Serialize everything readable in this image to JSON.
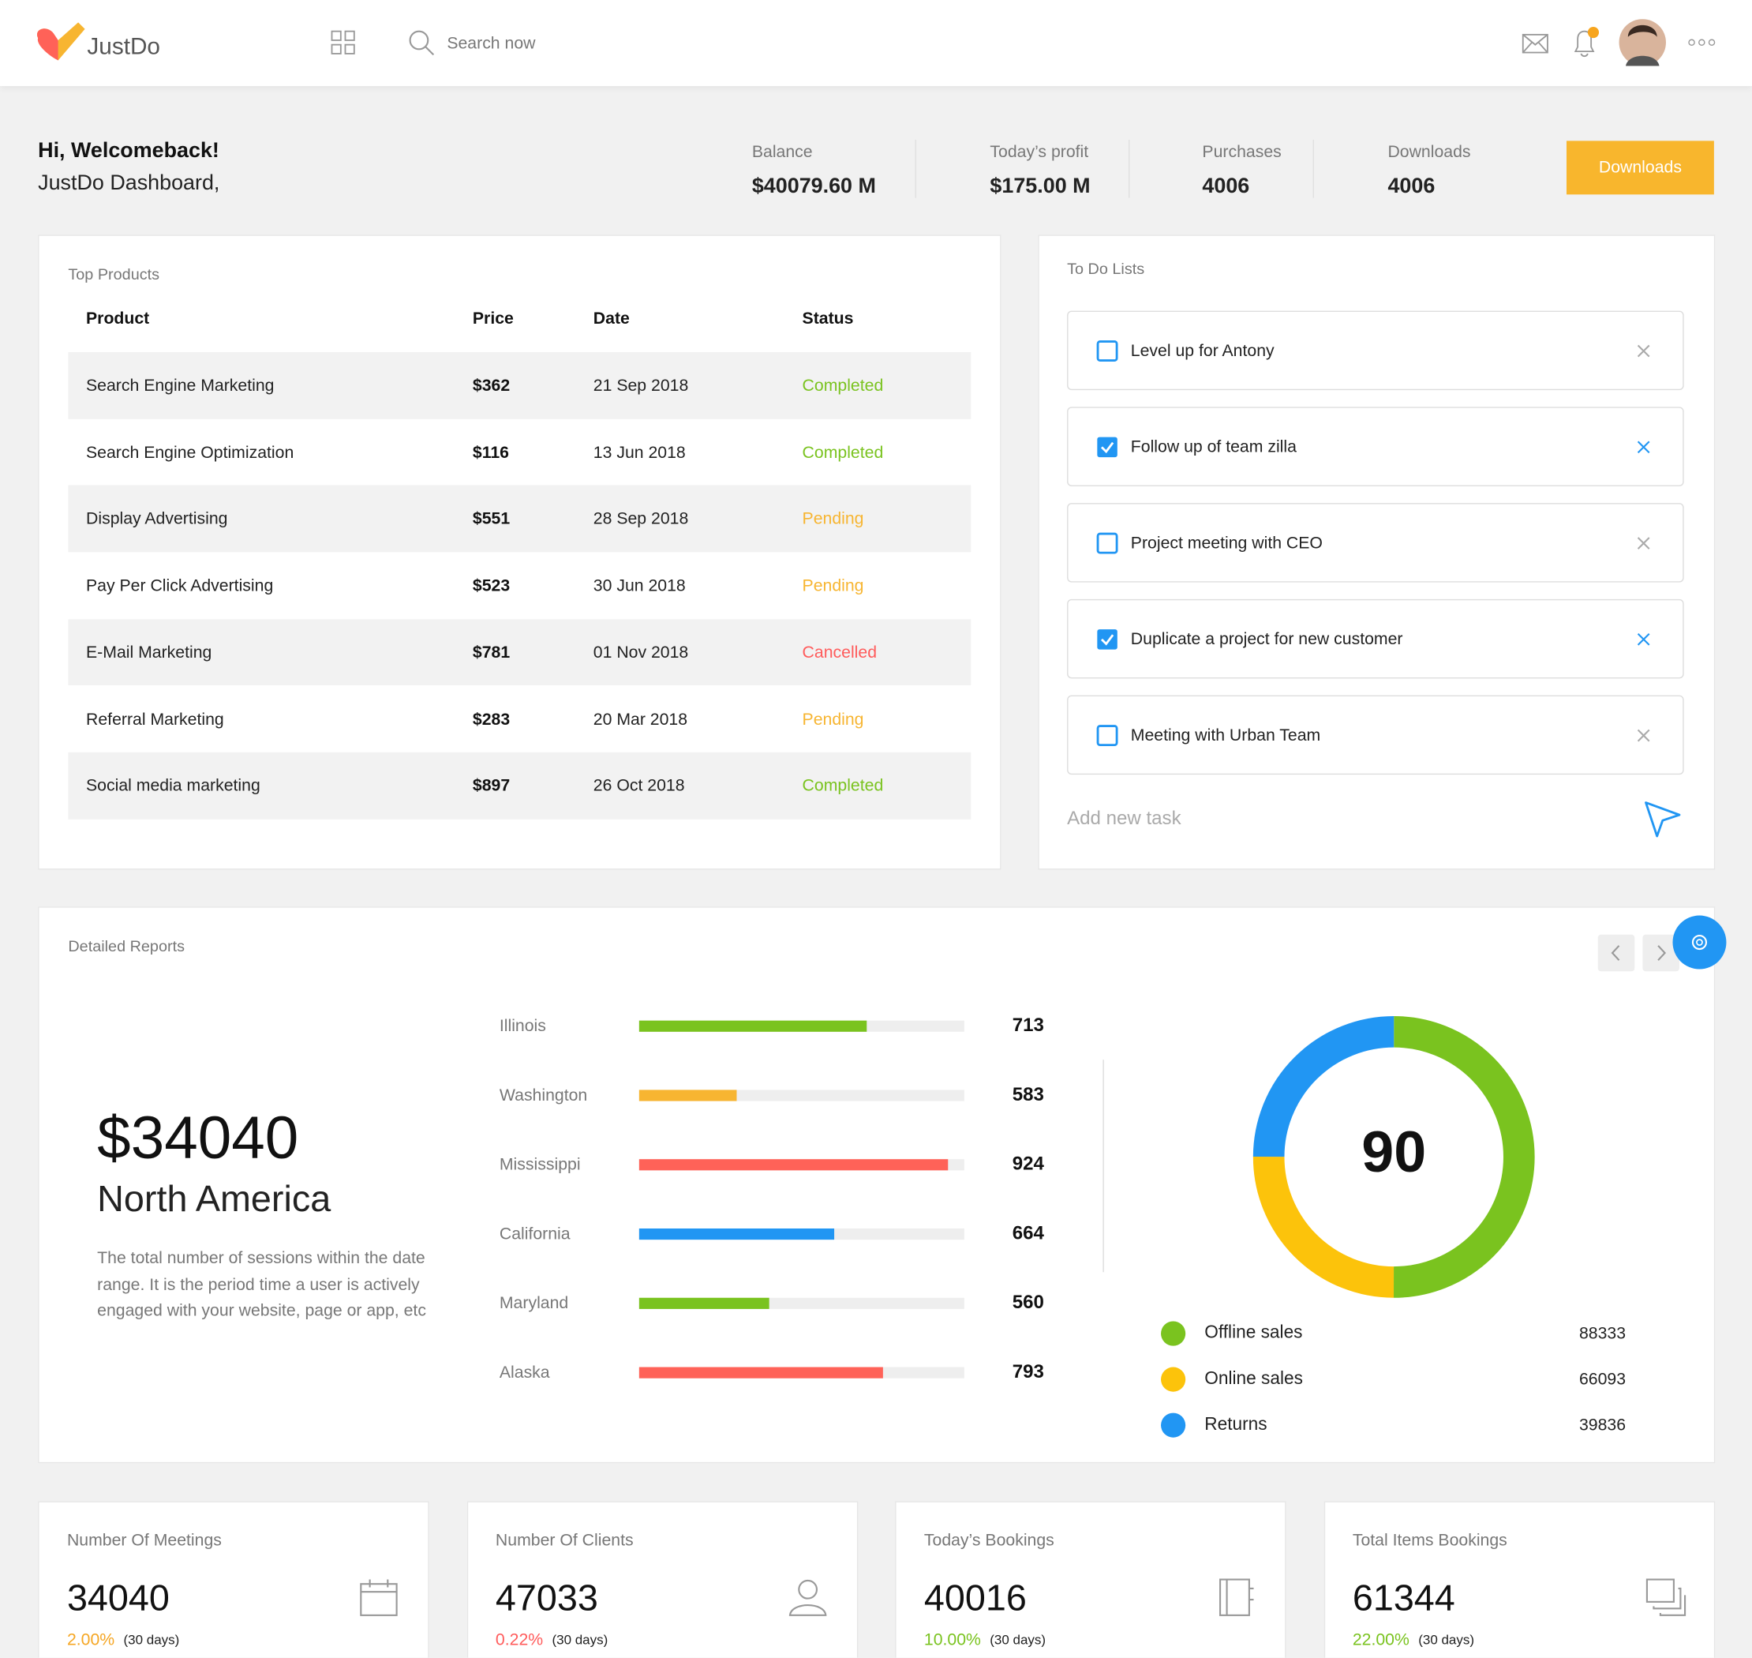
{
  "header": {
    "logo": "JustDo",
    "search_placeholder": "Search now"
  },
  "welcome": {
    "greeting": "Hi, Welcomeback!",
    "subtitle": "JustDo Dashboard,"
  },
  "stats": [
    {
      "label": "Balance",
      "value": "$40079.60 M"
    },
    {
      "label": "Today’s profit",
      "value": "$175.00 M"
    },
    {
      "label": "Purchases",
      "value": "4006"
    },
    {
      "label": "Downloads",
      "value": "4006"
    }
  ],
  "download_button": "Downloads",
  "top_products": {
    "title": "Top Products",
    "columns": [
      "Product",
      "Price",
      "Date",
      "Status"
    ],
    "rows": [
      {
        "product": "Search Engine Marketing",
        "price": "$362",
        "date": "21 Sep 2018",
        "status": "Completed",
        "status_color": "#7ac31f"
      },
      {
        "product": "Search Engine Optimization",
        "price": "$116",
        "date": "13 Jun 2018",
        "status": "Completed",
        "status_color": "#7ac31f"
      },
      {
        "product": "Display Advertising",
        "price": "$551",
        "date": "28 Sep 2018",
        "status": "Pending",
        "status_color": "#f7b531"
      },
      {
        "product": "Pay Per Click Advertising",
        "price": "$523",
        "date": "30 Jun 2018",
        "status": "Pending",
        "status_color": "#f7b531"
      },
      {
        "product": "E-Mail Marketing",
        "price": "$781",
        "date": "01 Nov 2018",
        "status": "Cancelled",
        "status_color": "#ff5b5b"
      },
      {
        "product": "Referral Marketing",
        "price": "$283",
        "date": "20 Mar 2018",
        "status": "Pending",
        "status_color": "#f7b531"
      },
      {
        "product": "Social media marketing",
        "price": "$897",
        "date": "26 Oct 2018",
        "status": "Completed",
        "status_color": "#7ac31f"
      }
    ]
  },
  "todo": {
    "title": "To Do Lists",
    "items": [
      {
        "text": "Level up for Antony",
        "done": false
      },
      {
        "text": "Follow up of team zilla",
        "done": true
      },
      {
        "text": "Project meeting with CEO",
        "done": false
      },
      {
        "text": "Duplicate a project for new customer",
        "done": true
      },
      {
        "text": "Meeting with Urban Team",
        "done": false
      }
    ],
    "add_placeholder": "Add new task"
  },
  "reports": {
    "title": "Detailed Reports",
    "amount": "$34040",
    "region": "North America",
    "description": "The total number of sessions within the date range. It is the period time a user is actively engaged with your website, page or app, etc",
    "bars": [
      {
        "label": "Illinois",
        "value": 713,
        "fill": 70,
        "color": "#7ac31f"
      },
      {
        "label": "Washington",
        "value": 583,
        "fill": 30,
        "color": "#f7b531"
      },
      {
        "label": "Mississippi",
        "value": 924,
        "fill": 95,
        "color": "#ff6258"
      },
      {
        "label": "California",
        "value": 664,
        "fill": 60,
        "color": "#2196f3"
      },
      {
        "label": "Maryland",
        "value": 560,
        "fill": 40,
        "color": "#7ac31f"
      },
      {
        "label": "Alaska",
        "value": 793,
        "fill": 75,
        "color": "#ff6258"
      }
    ],
    "donut": {
      "center": 90,
      "segments": [
        {
          "name": "Offline sales",
          "value": 88333,
          "share": 50,
          "color": "#7ac31f"
        },
        {
          "name": "Online sales",
          "value": 66093,
          "share": 25,
          "color": "#fcc30b"
        },
        {
          "name": "Returns",
          "value": 39836,
          "share": 25,
          "color": "#2196f3"
        }
      ]
    }
  },
  "cards": [
    {
      "title": "Number Of Meetings",
      "value": 34040,
      "change": "2.00%",
      "change_color": "#f5a623",
      "period": "(30 days)"
    },
    {
      "title": "Number Of Clients",
      "value": 47033,
      "change": "0.22%",
      "change_color": "#ff5b5b",
      "period": "(30 days)"
    },
    {
      "title": "Today’s Bookings",
      "value": 40016,
      "change": "10.00%",
      "change_color": "#7ac31f",
      "period": "(30 days)"
    },
    {
      "title": "Total Items Bookings",
      "value": 61344,
      "change": "22.00%",
      "change_color": "#7ac31f",
      "period": "(30 days)"
    }
  ]
}
